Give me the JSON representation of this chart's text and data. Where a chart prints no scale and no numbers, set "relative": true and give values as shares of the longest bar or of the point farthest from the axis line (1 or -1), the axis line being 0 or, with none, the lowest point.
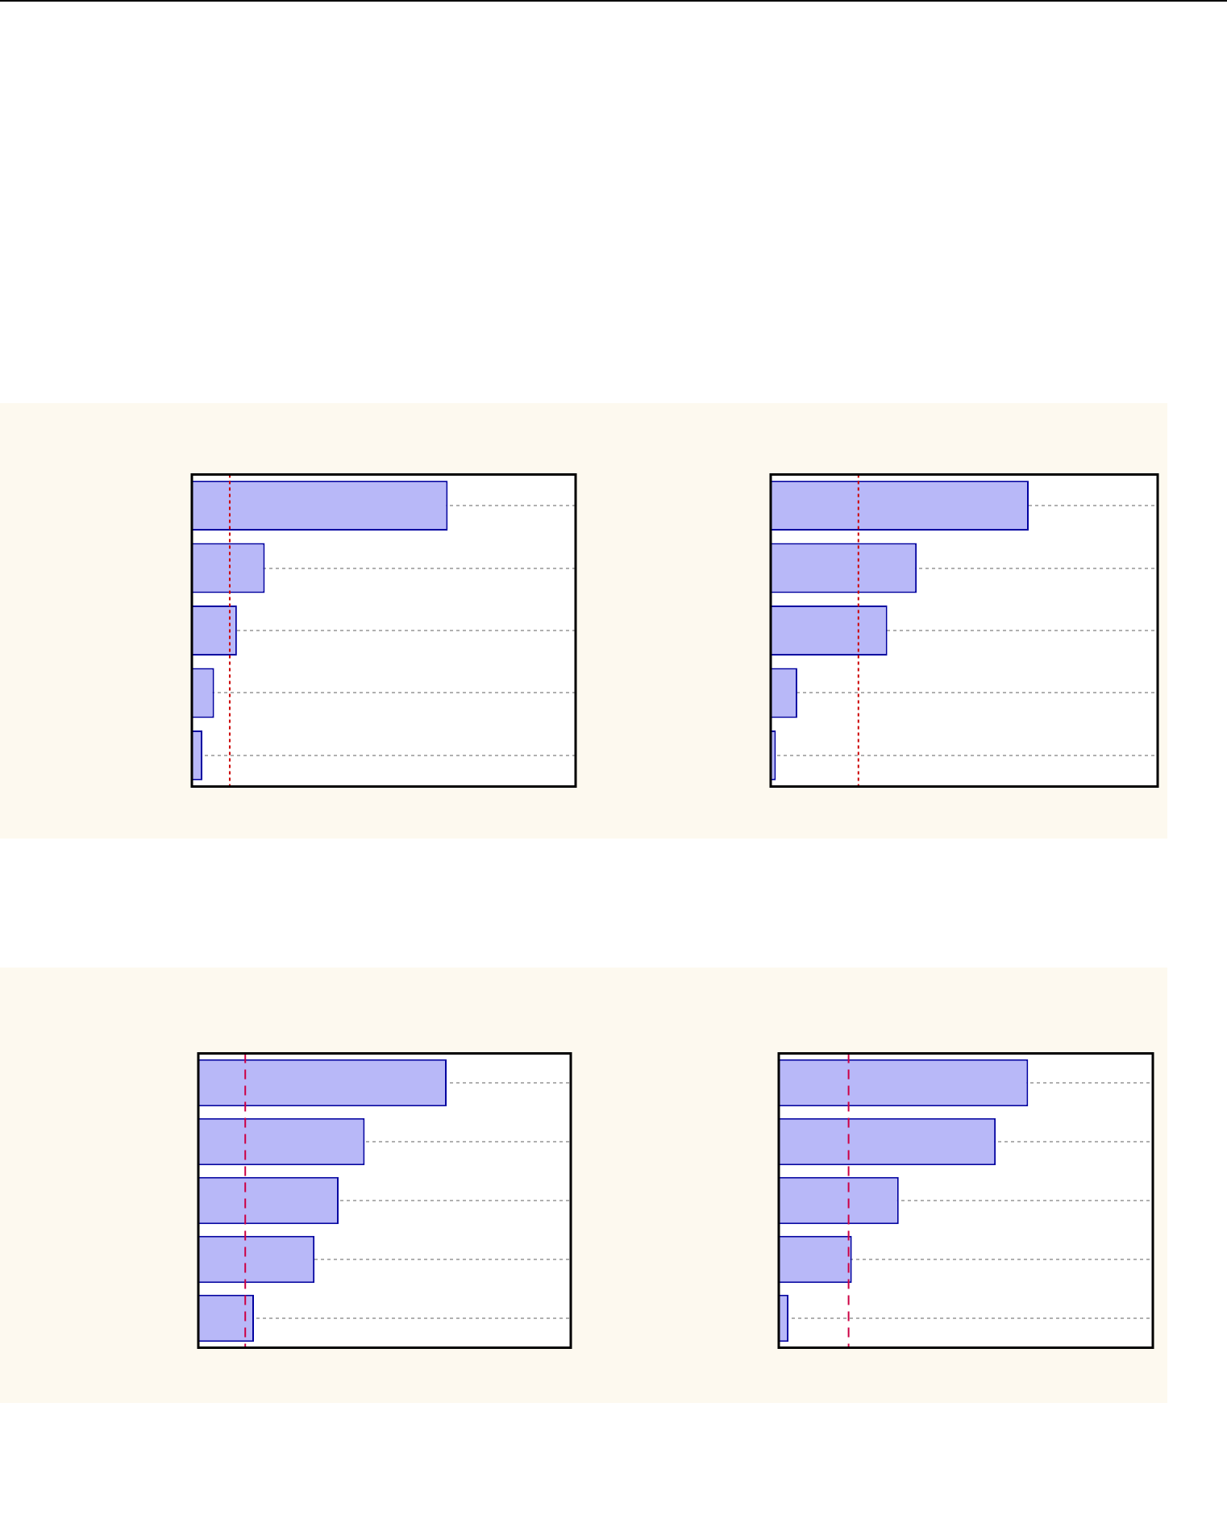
{
  "chart_data": [
    {
      "type": "bar",
      "orientation": "horizontal",
      "relative": true,
      "categories": [
        null,
        null,
        null,
        null,
        null
      ],
      "series": [
        {
          "color": "#b8b8f8",
          "values": [
            1,
            0.285,
            0.176,
            0.087,
            0.041
          ]
        }
      ],
      "ref_lines": [
        {
          "axis": "x",
          "value": 0.148,
          "color": "#cc0000",
          "line_style": "dotted"
        }
      ],
      "grid": "y",
      "legend": false
    },
    {
      "type": "bar",
      "orientation": "horizontal",
      "relative": true,
      "categories": [
        null,
        null,
        null,
        null,
        null
      ],
      "series": [
        {
          "color": "#b8b8f8",
          "values": [
            1,
            0.566,
            0.452,
            0.103,
            0.02
          ]
        }
      ],
      "ref_lines": [
        {
          "axis": "x",
          "value": 0.34,
          "color": "#cc0000",
          "line_style": "dotted"
        }
      ],
      "grid": "y",
      "legend": false
    },
    {
      "type": "bar",
      "orientation": "horizontal",
      "relative": true,
      "categories": [
        null,
        null,
        null,
        null,
        null
      ],
      "series": [
        {
          "color": "#b8b8f8",
          "values": [
            1,
            0.67,
            0.565,
            0.468,
            0.224
          ]
        }
      ],
      "ref_lines": [
        {
          "axis": "x",
          "value": 0.189,
          "color": "#cc0044",
          "line_style": "dashed"
        }
      ],
      "grid": "y",
      "legend": false
    },
    {
      "type": "bar",
      "orientation": "horizontal",
      "relative": true,
      "categories": [
        null,
        null,
        null,
        null,
        null
      ],
      "series": [
        {
          "color": "#b8b8f8",
          "values": [
            1,
            0.87,
            0.481,
            0.293,
            0.039
          ]
        }
      ],
      "ref_lines": [
        {
          "axis": "x",
          "value": 0.28,
          "color": "#cc0044",
          "line_style": "dashed"
        }
      ],
      "grid": "y",
      "legend": false
    }
  ]
}
